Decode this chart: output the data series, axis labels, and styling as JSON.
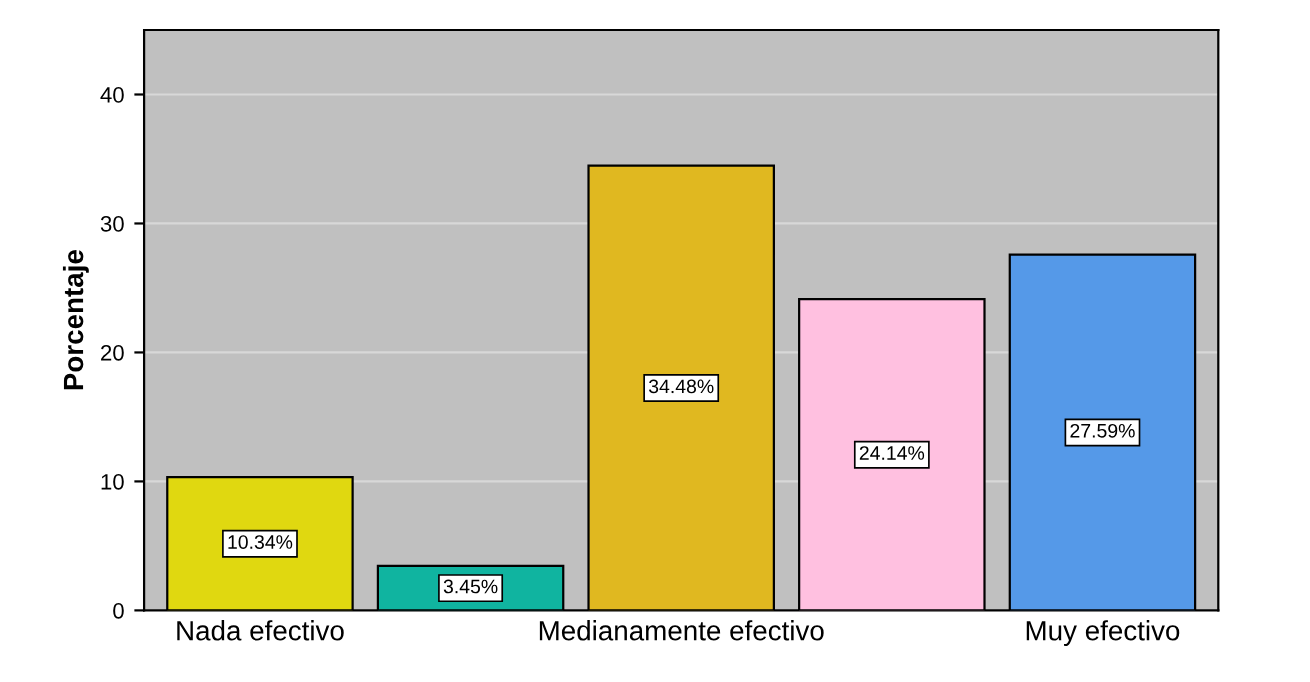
{
  "chart_data": {
    "type": "bar",
    "ylabel": "Porcentaje",
    "categories": [
      "Nada efectivo",
      null,
      "Medianamente efectivo",
      null,
      "Muy efectivo"
    ],
    "values": [
      10.34,
      3.45,
      34.48,
      24.14,
      27.59
    ],
    "value_labels": [
      "10.34%",
      "3.45%",
      "34.48%",
      "24.14%",
      "27.59%"
    ],
    "colors": [
      "#e0d810",
      "#10b4a0",
      "#e0b820",
      "#ffc0e0",
      "#5599e8"
    ],
    "ylim": [
      0,
      45
    ],
    "yticks": [
      0,
      10,
      20,
      30,
      40
    ],
    "grid": "y"
  }
}
